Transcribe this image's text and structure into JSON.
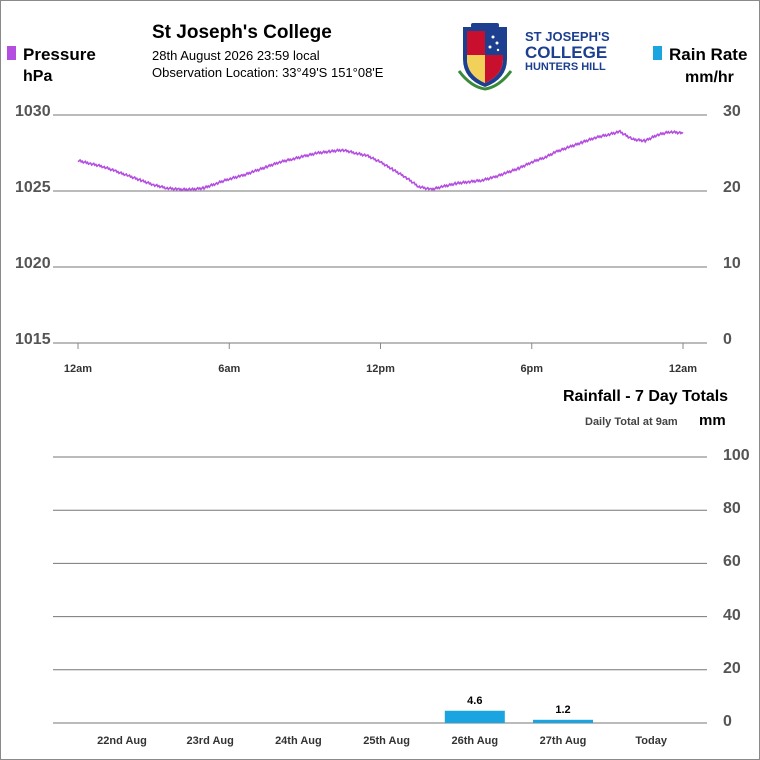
{
  "header": {
    "title": "St Joseph's College",
    "datetime": "28th August 2026  23:59 local",
    "location": "Observation Location: 33°49'S 151°08'E",
    "logo_text": [
      "ST JOSEPH'S",
      "COLLEGE",
      "HUNTERS HILL"
    ]
  },
  "colors": {
    "pressure": "#b44ee0",
    "rain": "#1aa5e0",
    "grid": "#777777",
    "axis_text": "#555555"
  },
  "pressure_panel": {
    "left_title": "Pressure",
    "left_unit": "hPa",
    "right_title": "Rain Rate",
    "right_unit": "mm/hr"
  },
  "rain_panel": {
    "title": "Rainfall - 7 Day Totals",
    "subtitle": "Daily Total at 9am",
    "unit": "mm"
  },
  "chart_data": [
    {
      "type": "line",
      "title": "Pressure",
      "ylabel": "hPa",
      "ylim": [
        1015,
        1030
      ],
      "yticks": [
        1030,
        1025,
        1020,
        1015
      ],
      "right_axis": {
        "label": "Rain Rate",
        "unit": "mm/hr",
        "ylim": [
          0,
          30
        ],
        "ticks": [
          30,
          20,
          10,
          0
        ]
      },
      "xlim": [
        0,
        24
      ],
      "x_ticks": [
        0,
        6,
        12,
        18,
        24
      ],
      "x_tick_labels": [
        "12am",
        "6am",
        "12pm",
        "6pm",
        "12am"
      ],
      "grid": true,
      "series": [
        {
          "name": "Pressure",
          "color": "#b44ee0",
          "x": [
            0.0,
            0.5,
            1.0,
            1.5,
            2.0,
            2.5,
            3.0,
            3.5,
            4.0,
            4.5,
            5.0,
            5.5,
            6.0,
            6.5,
            7.0,
            7.5,
            8.0,
            8.5,
            9.0,
            9.5,
            10.0,
            10.5,
            11.0,
            11.5,
            12.0,
            12.5,
            13.0,
            13.5,
            14.0,
            14.5,
            15.0,
            15.5,
            16.0,
            16.5,
            17.0,
            17.5,
            18.0,
            18.5,
            19.0,
            19.5,
            20.0,
            20.5,
            21.0,
            21.5,
            22.0,
            22.5,
            23.0,
            23.5,
            24.0
          ],
          "y": [
            1027.0,
            1026.8,
            1026.6,
            1026.3,
            1026.0,
            1025.7,
            1025.4,
            1025.2,
            1025.1,
            1025.1,
            1025.2,
            1025.5,
            1025.8,
            1026.0,
            1026.3,
            1026.6,
            1026.9,
            1027.1,
            1027.3,
            1027.5,
            1027.6,
            1027.7,
            1027.5,
            1027.3,
            1026.9,
            1026.4,
            1025.9,
            1025.3,
            1025.1,
            1025.3,
            1025.5,
            1025.6,
            1025.7,
            1025.9,
            1026.2,
            1026.5,
            1026.9,
            1027.2,
            1027.6,
            1027.9,
            1028.2,
            1028.5,
            1028.7,
            1028.9,
            1028.4,
            1028.3,
            1028.7,
            1028.9,
            1028.8
          ]
        }
      ]
    },
    {
      "type": "bar",
      "title": "Rainfall - 7 Day Totals",
      "subtitle": "Daily Total at 9am",
      "ylabel": "mm",
      "ylim": [
        0,
        100
      ],
      "yticks": [
        100,
        80,
        60,
        40,
        20,
        0
      ],
      "categories": [
        "22nd Aug",
        "23rd Aug",
        "24th Aug",
        "25th Aug",
        "26th Aug",
        "27th Aug",
        "Today"
      ],
      "values": [
        0,
        0,
        0,
        0,
        4.6,
        1.2,
        0
      ],
      "value_labels": [
        "",
        "",
        "",
        "",
        "4.6",
        "1.2",
        ""
      ],
      "color": "#1aa5e0",
      "grid": true
    }
  ]
}
